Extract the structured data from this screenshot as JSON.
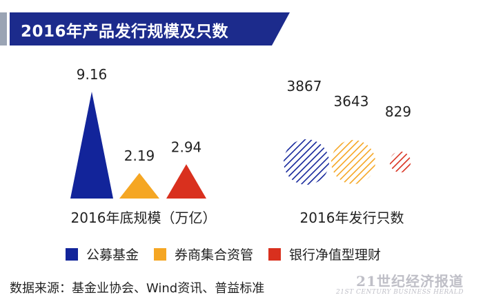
{
  "title": "2016年产品发行规模及只数",
  "colors": {
    "banner": "#1c2b8c",
    "banner_stripe": "#9aa4b4",
    "fund": "#12249a",
    "broker": "#f5a623",
    "bank": "#d9301e"
  },
  "chart_data": [
    {
      "type": "bar",
      "shape": "triangle",
      "xlabel": "2016年底规模（万亿）",
      "categories": [
        "公募基金",
        "券商集合资管",
        "银行净值型理财"
      ],
      "values": [
        9.16,
        2.19,
        2.94
      ],
      "data_labels": [
        "9.16",
        "2.19",
        "2.94"
      ]
    },
    {
      "type": "scatter",
      "shape": "bubble",
      "xlabel": "2016年发行只数",
      "categories": [
        "公募基金",
        "券商集合资管",
        "银行净值型理财"
      ],
      "values": [
        3867,
        3643,
        829
      ],
      "data_labels": [
        "3867",
        "3643",
        "829"
      ]
    }
  ],
  "legend": [
    {
      "label": "公募基金",
      "color": "#12249a"
    },
    {
      "label": "券商集合资管",
      "color": "#f5a623"
    },
    {
      "label": "银行净值型理财",
      "color": "#d9301e"
    }
  ],
  "source": "数据来源：基金业协会、Wind资讯、普益标准",
  "watermark": {
    "main": "21世纪经济报道",
    "sub": "21ST CENTURY BUSINESS HERALD"
  }
}
